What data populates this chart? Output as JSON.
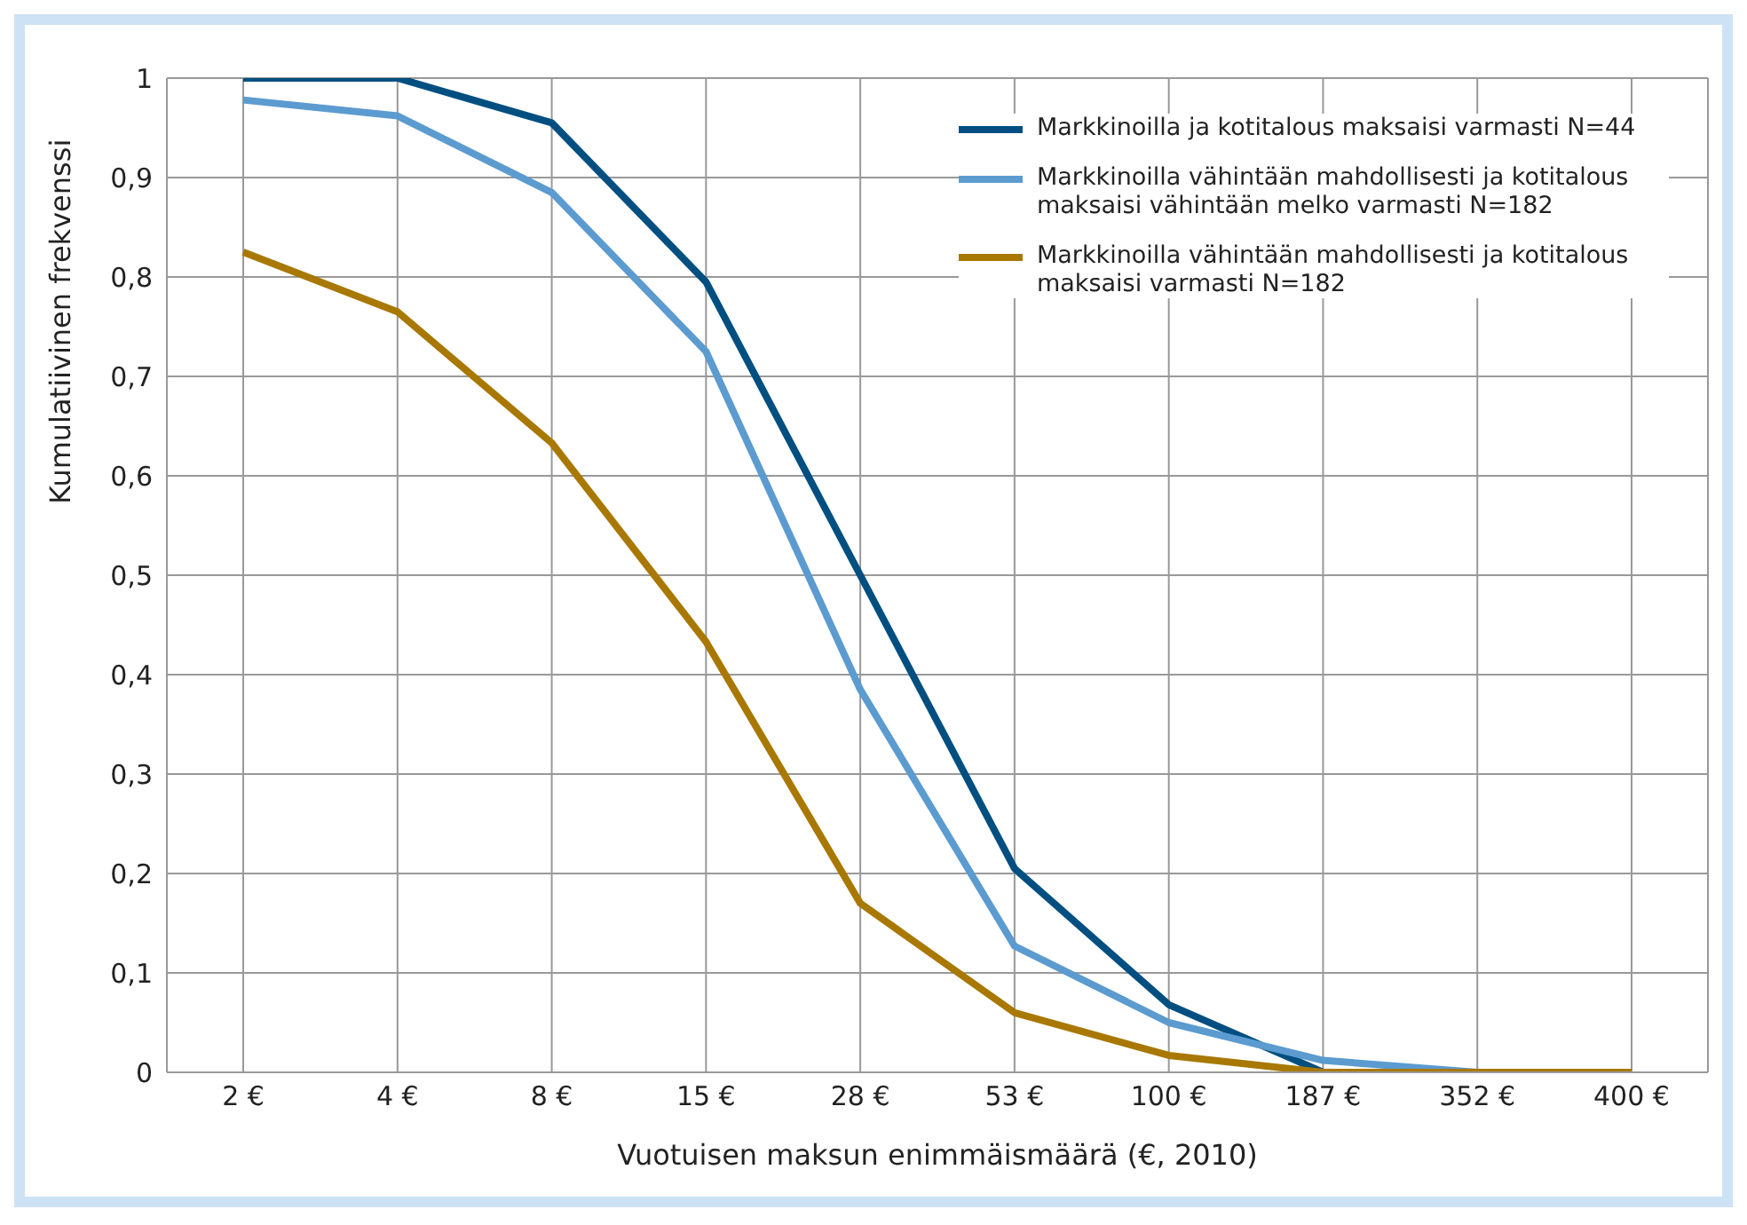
{
  "chart_data": {
    "type": "line",
    "xlabel": "Vuotuisen maksun enimmäismäärä (€, 2010)",
    "ylabel": "Kumulatiivinen frekvenssi",
    "categories": [
      "2 €",
      "4 €",
      "8 €",
      "15 €",
      "28 €",
      "53 €",
      "100 €",
      "187 €",
      "352 €",
      "400 €"
    ],
    "series": [
      {
        "name": "Markkinoilla ja kotitalous maksaisi varmasti N=44",
        "color": "#004f80",
        "values": [
          1,
          1,
          0.955,
          0.795,
          0.5,
          0.205,
          0.068,
          0,
          0,
          0
        ]
      },
      {
        "name": "Markkinoilla vähintään mahdollisesti ja kotitalous maksaisi vähintään melko varmasti N=182",
        "color": "#5b9bd0",
        "values": [
          0.978,
          0.962,
          0.885,
          0.725,
          0.385,
          0.127,
          0.05,
          0.012,
          0,
          0
        ]
      },
      {
        "name": "Markkinoilla vähintään mahdollisesti ja kotitalous maksaisi varmasti N=182",
        "color": "#a87800",
        "values": [
          0.825,
          0.765,
          0.633,
          0.433,
          0.17,
          0.06,
          0.017,
          0,
          0,
          0
        ]
      }
    ],
    "ylim": [
      0,
      1
    ],
    "yticks": [
      0,
      {
        "value": 0.1,
        "label": "0,1"
      },
      {
        "value": 0.2,
        "label": "0,2"
      },
      {
        "value": 0.3,
        "label": "0,3"
      },
      {
        "value": 0.4,
        "label": "0,4"
      },
      {
        "value": 0.5,
        "label": "0,5"
      },
      {
        "value": 0.6,
        "label": "0,6"
      },
      {
        "value": 0.7,
        "label": "0,7"
      },
      {
        "value": 0.8,
        "label": "0,8"
      },
      {
        "value": 0.9,
        "label": "0,9"
      },
      1
    ],
    "grid": true,
    "legend": "top right",
    "marker": "none",
    "line_style": "solid"
  }
}
